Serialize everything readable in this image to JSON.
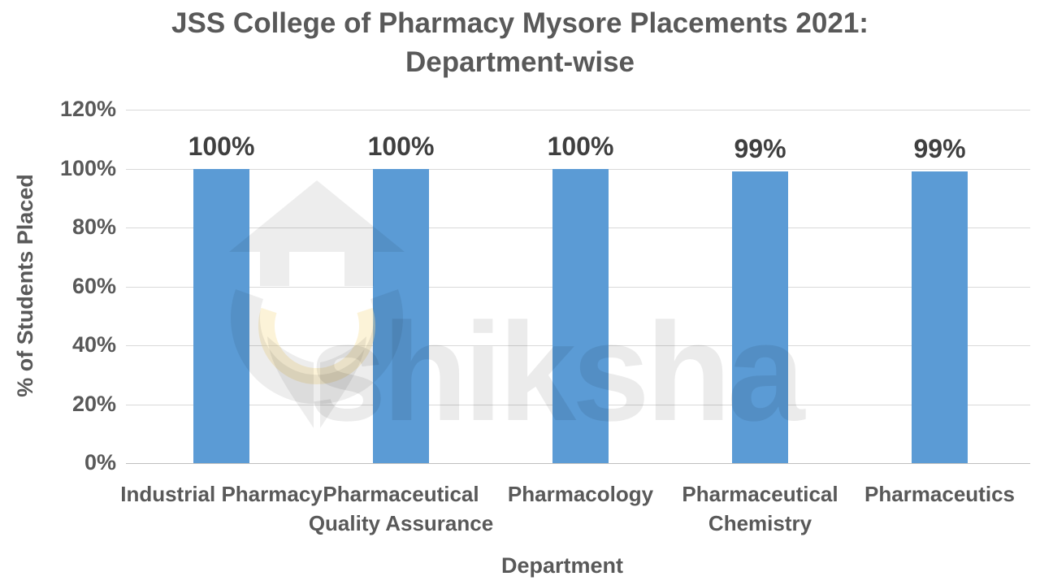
{
  "title_line1": "JSS College of Pharmacy Mysore Placements 2021:",
  "title_line2": "Department-wise",
  "axes": {
    "y_title": "% of Students Placed",
    "x_title": "Department",
    "y_ticks": [
      "120%",
      "100%",
      "80%",
      "60%",
      "40%",
      "20%",
      "0%"
    ]
  },
  "watermark": {
    "text": "shiksha"
  },
  "colors": {
    "bar": "#5B9BD5",
    "text": "#595959",
    "data_label": "#3F3F3F",
    "gridline": "#D9D9D9",
    "axis_line": "#BFBFBF"
  },
  "chart_data": {
    "type": "bar",
    "title": "JSS College of Pharmacy Mysore Placements 2021: Department-wise",
    "categories": [
      "Industrial Pharmacy",
      "Pharmaceutical Quality Assurance",
      "Pharmacology",
      "Pharmaceutical Chemistry",
      "Pharmaceutics"
    ],
    "values": [
      100,
      100,
      100,
      99,
      99
    ],
    "data_labels": [
      "100%",
      "100%",
      "100%",
      "99%",
      "99%"
    ],
    "xlabel": "Department",
    "ylabel": "% of Students Placed",
    "ylim": [
      0,
      120
    ],
    "ytick_step": 20,
    "grid": true,
    "legend": false,
    "bar_color": "#5B9BD5"
  }
}
